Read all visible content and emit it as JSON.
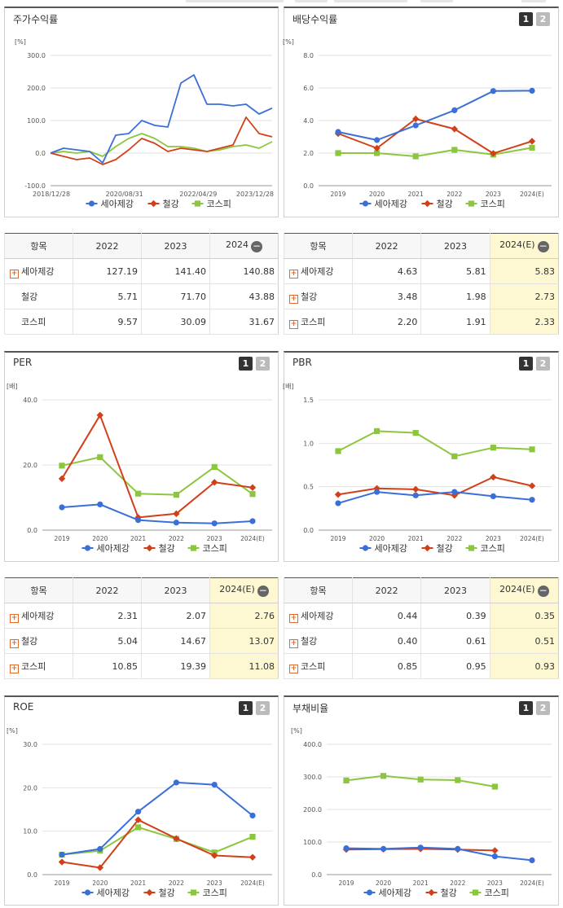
{
  "legend_names": [
    "세아제강",
    "철강",
    "코스피"
  ],
  "colors": {
    "s1": "#3a6fd8",
    "s2": "#d2401a",
    "s3": "#8cc63f"
  },
  "panels": {
    "stock": {
      "title": "주가수익률",
      "unit": "[%]",
      "yticks": [
        "300.0",
        "200.0",
        "100.0",
        "0.0",
        "-100.0"
      ],
      "xticks": [
        "2018/12/28",
        "2020/08/31",
        "2022/04/29",
        "2023/12/28"
      ]
    },
    "div": {
      "title": "배당수익률",
      "unit": "[%]",
      "yticks": [
        "8.0",
        "6.0",
        "4.0",
        "2.0",
        "0.0"
      ],
      "btn1": "1",
      "btn2": "2"
    },
    "per": {
      "title": "PER",
      "unit": "[배]",
      "yticks": [
        "40.0",
        "20.0",
        "0.0"
      ],
      "btn1": "1",
      "btn2": "2"
    },
    "pbr": {
      "title": "PBR",
      "unit": "[배]",
      "yticks": [
        "1.5",
        "1.0",
        "0.5",
        "0.0"
      ],
      "btn1": "1",
      "btn2": "2"
    },
    "roe": {
      "title": "ROE",
      "unit": "[%]",
      "yticks": [
        "30.0",
        "20.0",
        "10.0",
        "0.0"
      ],
      "btn1": "1",
      "btn2": "2"
    },
    "debt": {
      "title": "부채비율",
      "unit": "[%]",
      "yticks": [
        "400.0",
        "300.0",
        "200.0",
        "100.0",
        "0.0"
      ],
      "btn1": "1",
      "btn2": "2"
    }
  },
  "years": [
    "2019",
    "2020",
    "2021",
    "2022",
    "2023",
    "2024(E)"
  ],
  "tables": {
    "stock": {
      "headers": [
        "항목",
        "2022",
        "2023",
        "2024"
      ],
      "rows": [
        {
          "name": "세아제강",
          "v": [
            "127.19",
            "141.40",
            "140.88"
          ]
        },
        {
          "name": "철강",
          "v": [
            "5.71",
            "71.70",
            "43.88"
          ]
        },
        {
          "name": "코스피",
          "v": [
            "9.57",
            "30.09",
            "31.67"
          ]
        }
      ]
    },
    "div": {
      "headers": [
        "항목",
        "2022",
        "2023",
        "2024(E)"
      ],
      "rows": [
        {
          "name": "세아제강",
          "v": [
            "4.63",
            "5.81",
            "5.83"
          ]
        },
        {
          "name": "철강",
          "v": [
            "3.48",
            "1.98",
            "2.73"
          ]
        },
        {
          "name": "코스피",
          "v": [
            "2.20",
            "1.91",
            "2.33"
          ]
        }
      ]
    },
    "per": {
      "headers": [
        "항목",
        "2022",
        "2023",
        "2024(E)"
      ],
      "rows": [
        {
          "name": "세아제강",
          "v": [
            "2.31",
            "2.07",
            "2.76"
          ]
        },
        {
          "name": "철강",
          "v": [
            "5.04",
            "14.67",
            "13.07"
          ]
        },
        {
          "name": "코스피",
          "v": [
            "10.85",
            "19.39",
            "11.08"
          ]
        }
      ]
    },
    "pbr": {
      "headers": [
        "항목",
        "2022",
        "2023",
        "2024(E)"
      ],
      "rows": [
        {
          "name": "세아제강",
          "v": [
            "0.44",
            "0.39",
            "0.35"
          ]
        },
        {
          "name": "철강",
          "v": [
            "0.40",
            "0.61",
            "0.51"
          ]
        },
        {
          "name": "코스피",
          "v": [
            "0.85",
            "0.95",
            "0.93"
          ]
        }
      ]
    }
  },
  "chart_data": [
    {
      "type": "line",
      "title": "주가수익률",
      "ylabel": "[%]",
      "ylim": [
        -100,
        300
      ],
      "grid": true,
      "legend": "bottom",
      "x": [
        "2018/12/28",
        "2019/04",
        "2019/08",
        "2019/12",
        "2020/04",
        "2020/08/31",
        "2020/12",
        "2021/04",
        "2021/08",
        "2021/12",
        "2022/02",
        "2022/04/29",
        "2022/07",
        "2022/10",
        "2023/01",
        "2023/04",
        "2023/08",
        "2023/12/28"
      ],
      "series": [
        {
          "name": "세아제강",
          "values": [
            0,
            15,
            10,
            5,
            -30,
            55,
            60,
            100,
            85,
            80,
            215,
            240,
            150,
            150,
            145,
            150,
            120,
            138
          ]
        },
        {
          "name": "철강",
          "values": [
            0,
            -10,
            -20,
            -15,
            -35,
            -20,
            10,
            45,
            30,
            5,
            15,
            10,
            5,
            15,
            25,
            110,
            60,
            50
          ]
        },
        {
          "name": "코스피",
          "values": [
            0,
            5,
            0,
            5,
            -10,
            20,
            45,
            60,
            45,
            20,
            20,
            15,
            5,
            10,
            20,
            25,
            15,
            35
          ]
        }
      ]
    },
    {
      "type": "line",
      "title": "배당수익률",
      "ylabel": "[%]",
      "ylim": [
        0,
        8
      ],
      "grid": true,
      "legend": "bottom",
      "x": [
        "2019",
        "2020",
        "2021",
        "2022",
        "2023",
        "2024(E)"
      ],
      "series": [
        {
          "name": "세아제강",
          "values": [
            3.3,
            2.8,
            3.7,
            4.63,
            5.81,
            5.83
          ]
        },
        {
          "name": "철강",
          "values": [
            3.2,
            2.3,
            4.1,
            3.48,
            1.98,
            2.73
          ]
        },
        {
          "name": "코스피",
          "values": [
            2.0,
            2.0,
            1.8,
            2.2,
            1.91,
            2.33
          ]
        }
      ]
    },
    {
      "type": "line",
      "title": "PER",
      "ylabel": "[배]",
      "ylim": [
        0,
        40
      ],
      "grid": true,
      "legend": "bottom",
      "x": [
        "2019",
        "2020",
        "2021",
        "2022",
        "2023",
        "2024(E)"
      ],
      "series": [
        {
          "name": "세아제강",
          "values": [
            7.0,
            7.9,
            3.1,
            2.31,
            2.07,
            2.76
          ]
        },
        {
          "name": "철강",
          "values": [
            15.8,
            35.3,
            3.9,
            5.04,
            14.67,
            13.07
          ]
        },
        {
          "name": "코스피",
          "values": [
            19.8,
            22.4,
            11.2,
            10.85,
            19.39,
            11.08
          ]
        }
      ]
    },
    {
      "type": "line",
      "title": "PBR",
      "ylabel": "[배]",
      "ylim": [
        0,
        1.5
      ],
      "grid": true,
      "legend": "bottom",
      "x": [
        "2019",
        "2020",
        "2021",
        "2022",
        "2023",
        "2024(E)"
      ],
      "series": [
        {
          "name": "세아제강",
          "values": [
            0.31,
            0.44,
            0.4,
            0.44,
            0.39,
            0.35
          ]
        },
        {
          "name": "철강",
          "values": [
            0.41,
            0.48,
            0.47,
            0.4,
            0.61,
            0.51
          ]
        },
        {
          "name": "코스피",
          "values": [
            0.91,
            1.14,
            1.12,
            0.85,
            0.95,
            0.93
          ]
        }
      ]
    },
    {
      "type": "line",
      "title": "ROE",
      "ylabel": "[%]",
      "ylim": [
        0,
        30
      ],
      "grid": true,
      "legend": "bottom",
      "x": [
        "2019",
        "2020",
        "2021",
        "2022",
        "2023",
        "2024(E)"
      ],
      "series": [
        {
          "name": "세아제강",
          "values": [
            4.6,
            5.9,
            14.5,
            21.2,
            20.7,
            13.6
          ]
        },
        {
          "name": "철강",
          "values": [
            2.9,
            1.6,
            12.6,
            8.3,
            4.4,
            4.0
          ]
        },
        {
          "name": "코스피",
          "values": [
            4.6,
            5.5,
            10.9,
            8.2,
            5.1,
            8.7
          ]
        }
      ]
    },
    {
      "type": "line",
      "title": "부채비율",
      "ylabel": "[%]",
      "ylim": [
        0,
        400
      ],
      "grid": true,
      "legend": "bottom",
      "x": [
        "2019",
        "2020",
        "2021",
        "2022",
        "2023",
        "2024(E)"
      ],
      "series": [
        {
          "name": "세아제강",
          "values": [
            81,
            79,
            83,
            79,
            56,
            44
          ]
        },
        {
          "name": "철강",
          "values": [
            77,
            78,
            79,
            77,
            74,
            null
          ]
        },
        {
          "name": "코스피",
          "values": [
            289,
            303,
            292,
            290,
            270,
            null
          ]
        }
      ]
    }
  ]
}
